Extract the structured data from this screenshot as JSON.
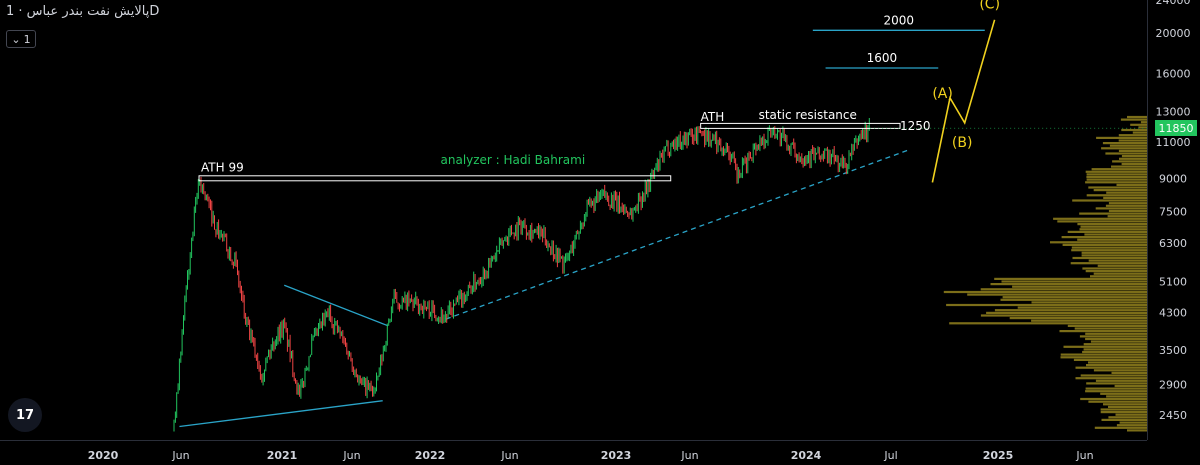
{
  "header": {
    "symbol_title": "پالایش نفت بندر عباس · 1D",
    "interval_selector": "1",
    "logo_text": "17"
  },
  "colors": {
    "up": "#22c55e",
    "down": "#ef4444",
    "trendline": "#2aa4c8",
    "wave_labels": "#f0d11e",
    "volume_profile": "#8a7a1c",
    "white": "#ffffff",
    "background": "#000000",
    "price_badge": "#22c55e"
  },
  "chart_data": {
    "type": "candlestick",
    "x_axis": {
      "ticks": [
        "2020",
        "Jun",
        "2021",
        "Jun",
        "2022",
        "Jun",
        "2023",
        "Jun",
        "2024",
        "Jul",
        "2025",
        "Jun"
      ]
    },
    "y_axis": {
      "scale": "log",
      "ticks": [
        2450,
        2900,
        3500,
        4300,
        5100,
        6300,
        7500,
        9000,
        11000,
        13000,
        16000,
        20000,
        24000
      ],
      "range": [
        2200,
        25000
      ]
    },
    "last_price": 11850,
    "price_path": [
      [
        "2020-05-25",
        2300
      ],
      [
        "2020-06-20",
        5000
      ],
      [
        "2020-07-15",
        9000
      ],
      [
        "2020-08-20",
        6800
      ],
      [
        "2020-09-25",
        5800
      ],
      [
        "2020-10-20",
        4000
      ],
      [
        "2020-11-20",
        3100
      ],
      [
        "2020-12-20",
        3800
      ],
      [
        "2021-01-05",
        4000
      ],
      [
        "2021-02-05",
        2700
      ],
      [
        "2021-03-01",
        3600
      ],
      [
        "2021-04-05",
        4300
      ],
      [
        "2021-05-10",
        3600
      ],
      [
        "2021-06-10",
        2900
      ],
      [
        "2021-07-10",
        2800
      ],
      [
        "2021-08-15",
        4600
      ],
      [
        "2021-10-05",
        4500
      ],
      [
        "2021-12-01",
        4200
      ],
      [
        "2022-01-05",
        4700
      ],
      [
        "2022-03-01",
        5600
      ],
      [
        "2022-04-05",
        6600
      ],
      [
        "2022-05-05",
        7000
      ],
      [
        "2022-06-20",
        6500
      ],
      [
        "2022-08-01",
        5600
      ],
      [
        "2022-09-15",
        7600
      ],
      [
        "2022-10-20",
        8200
      ],
      [
        "2022-12-15",
        7400
      ],
      [
        "2023-01-20",
        8800
      ],
      [
        "2023-03-01",
        10800
      ],
      [
        "2023-05-05",
        11600
      ],
      [
        "2023-07-01",
        10500
      ],
      [
        "2023-07-20",
        9000
      ],
      [
        "2023-08-20",
        10600
      ],
      [
        "2023-10-01",
        11800
      ],
      [
        "2023-11-20",
        10200
      ],
      [
        "2024-01-20",
        10200
      ],
      [
        "2024-02-25",
        9600
      ],
      [
        "2024-03-25",
        11400
      ],
      [
        "2024-04-15",
        11850
      ]
    ],
    "annotations": [
      {
        "text": "ATH 99",
        "type": "level",
        "price": 9000,
        "from": "2020-07-15",
        "to": "2023-03-05"
      },
      {
        "text": "analyzer : Hadi Bahrami",
        "type": "text",
        "price": 9950,
        "at": "2021-11-20"
      },
      {
        "text": "ATH",
        "type": "text",
        "price": 12600,
        "at": "2023-05-05"
      },
      {
        "text": "static resistance",
        "type": "level",
        "price": 12000,
        "from": "2023-05-05",
        "to": "2024-06-15"
      },
      {
        "text": "1250",
        "type": "text",
        "price": 12000,
        "at": "2024-06-15"
      },
      {
        "text": "1600",
        "type": "level",
        "price": 16500,
        "from": "2024-01-15",
        "to": "2024-09-01"
      },
      {
        "text": "2000",
        "type": "level",
        "price": 20300,
        "from": "2023-12-20",
        "to": "2024-12-05"
      },
      {
        "text": "(A)",
        "type": "wave_label",
        "price": 14400,
        "at": "2024-09-10"
      },
      {
        "text": "(B)",
        "type": "wave_label",
        "price": 11000,
        "at": "2024-10-20"
      },
      {
        "text": "(C)",
        "type": "wave_label",
        "price": 23500,
        "at": "2024-12-15"
      }
    ],
    "trendlines": [
      {
        "style": "solid",
        "points": [
          [
            "2020-06-05",
            2300
          ],
          [
            "2021-07-25",
            2650
          ]
        ]
      },
      {
        "style": "solid",
        "points": [
          [
            "2021-01-05",
            5000
          ],
          [
            "2021-08-05",
            4000
          ]
        ]
      },
      {
        "style": "dashed",
        "points": [
          [
            "2021-12-01",
            4150
          ],
          [
            "2024-07-01",
            10500
          ]
        ]
      }
    ],
    "projection_path": [
      [
        "2024-08-20",
        8800
      ],
      [
        "2024-09-25",
        14000
      ],
      [
        "2024-10-25",
        12200
      ],
      [
        "2024-12-25",
        21500
      ]
    ]
  }
}
